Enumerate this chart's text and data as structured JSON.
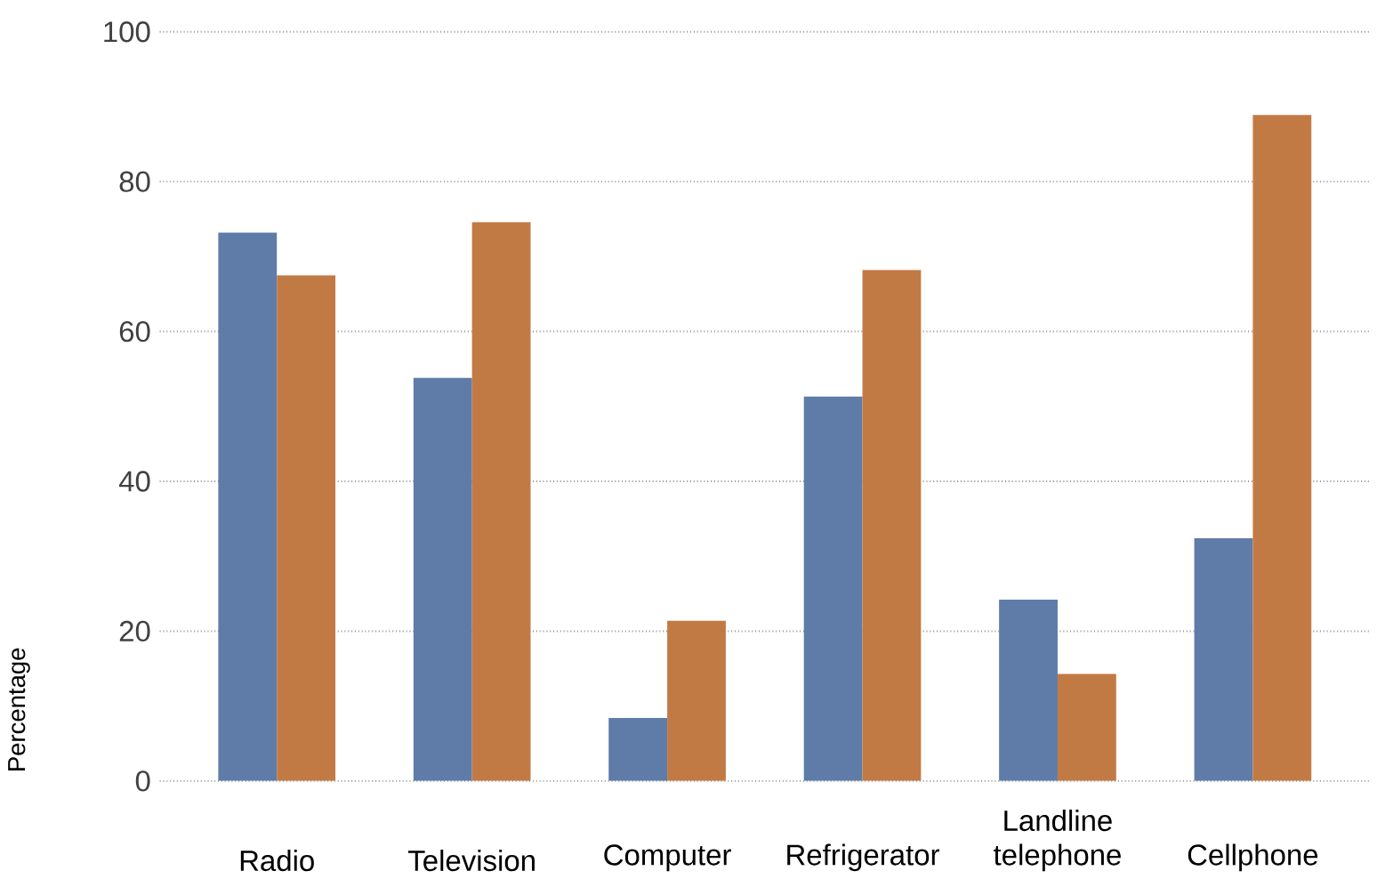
{
  "chart_data": {
    "type": "bar",
    "ylabel": "Percentage",
    "categories": [
      "Radio",
      "Television",
      "Computer",
      "Refrigerator",
      "Landline telephone",
      "Cellphone"
    ],
    "series": [
      {
        "color": "#5f7ca8",
        "values": [
          73.2,
          53.8,
          8.4,
          51.3,
          24.2,
          32.4
        ]
      },
      {
        "color": "#c27a45",
        "values": [
          67.5,
          74.6,
          21.4,
          68.2,
          14.3,
          88.9
        ]
      }
    ],
    "ylim": [
      0,
      100
    ],
    "yticks": [
      0,
      20,
      40,
      60,
      80,
      100
    ],
    "grid": "y"
  }
}
